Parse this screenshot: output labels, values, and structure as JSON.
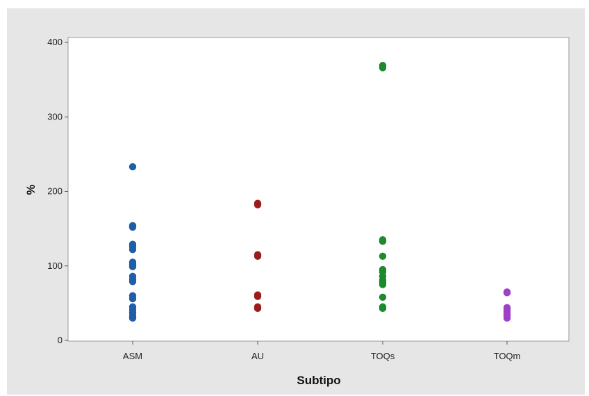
{
  "chart_data": {
    "type": "scatter",
    "xlabel": "Subtipo",
    "ylabel": "%",
    "categories": [
      "ASM",
      "AU",
      "TOQs",
      "TOQm"
    ],
    "ylim": [
      0,
      400
    ],
    "yticks": [
      0,
      100,
      200,
      300,
      400
    ],
    "grid": false,
    "series": [
      {
        "category": "ASM",
        "color": "#1f5fa8",
        "values": [
          233,
          154,
          152,
          129,
          126,
          122,
          105,
          102,
          99,
          86,
          82,
          79,
          60,
          56,
          45,
          41,
          37,
          33,
          30
        ]
      },
      {
        "category": "AU",
        "color": "#9b1c1c",
        "values": [
          184,
          182,
          115,
          113,
          61,
          59,
          45,
          43
        ]
      },
      {
        "category": "TOQs",
        "color": "#1e8a2e",
        "values": [
          369,
          366,
          135,
          133,
          113,
          95,
          92,
          86,
          81,
          78,
          75,
          58,
          45,
          43
        ]
      },
      {
        "category": "TOQm",
        "color": "#a040c8",
        "values": [
          65,
          64,
          44,
          41,
          38,
          35,
          33,
          30
        ]
      }
    ]
  }
}
